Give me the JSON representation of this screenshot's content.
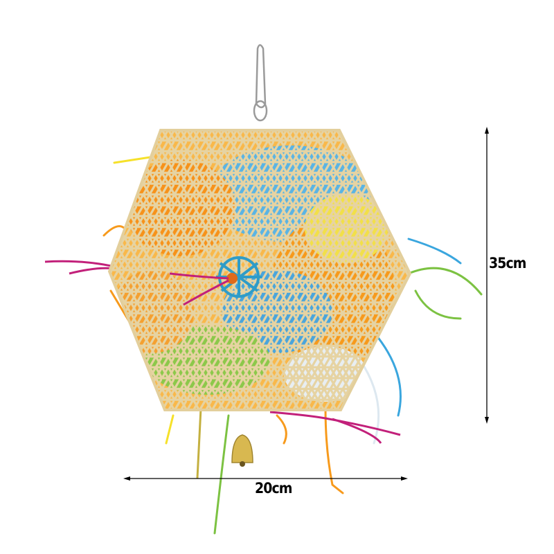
{
  "product": {
    "height_label": "35cm",
    "width_label": "20cm"
  },
  "colors": {
    "bamboo": "#e3cf9c",
    "shred_orange": "#f79a1c",
    "shred_blue": "#3aa6de",
    "shred_green": "#7cc242",
    "shred_yellow": "#f6e12a",
    "cord_magenta": "#c2207a",
    "dimension_line": "#000000"
  }
}
